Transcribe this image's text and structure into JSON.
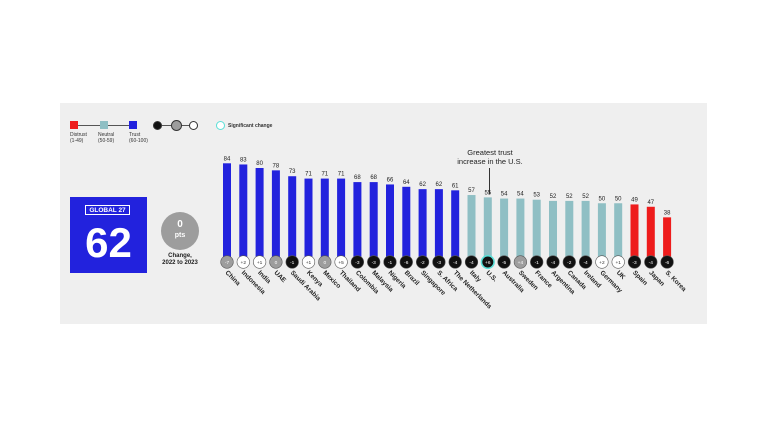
{
  "legend": {
    "categories": [
      {
        "name": "Distrust",
        "range": "(1-49)",
        "color": "#ee1c1c"
      },
      {
        "name": "Neutral",
        "range": "(50-59)",
        "color": "#8fbfc4"
      },
      {
        "name": "Trust",
        "range": "(60-100)",
        "color": "#2222dd"
      }
    ],
    "significant_label": "Significant change"
  },
  "global": {
    "label": "GLOBAL 27",
    "value": "62"
  },
  "change": {
    "value": "0",
    "unit": "pts",
    "caption_line1": "Change,",
    "caption_line2": "2022 to 2023"
  },
  "annotation": {
    "line1": "Greatest trust",
    "line2": "increase in the U.S."
  },
  "chart_data": {
    "type": "bar",
    "categories": [
      "China",
      "Indonesia",
      "India",
      "UAE",
      "Saudi Arabia",
      "Kenya",
      "Mexico",
      "Thailand",
      "Colombia",
      "Malaysia",
      "Nigeria",
      "Brazil",
      "Singapore",
      "S. Africa",
      "The Netherlands",
      "Italy",
      "U.S.",
      "Australia",
      "Sweden",
      "France",
      "Argentina",
      "Canada",
      "Ireland",
      "Germany",
      "UK",
      "Spain",
      "Japan",
      "S. Korea"
    ],
    "values": [
      84,
      83,
      80,
      78,
      73,
      71,
      71,
      71,
      68,
      68,
      66,
      64,
      62,
      62,
      61,
      57,
      55,
      54,
      54,
      53,
      52,
      52,
      52,
      50,
      50,
      49,
      47,
      38
    ],
    "changes": [
      "-7",
      "+2",
      "+1",
      "0",
      "-1",
      "+1",
      "0",
      "+5",
      "-3",
      "-3",
      "-1",
      "-6",
      "-2",
      "-3",
      "-4",
      "-4",
      "+6",
      "-5",
      "+4",
      "-1",
      "-4",
      "-2",
      "-4",
      "+2",
      "+1",
      "-3",
      "-4",
      "-6"
    ],
    "change_colors": [
      "#9d9d9d",
      "#ffffff",
      "#ffffff",
      "#9d9d9d",
      "#111111",
      "#ffffff",
      "#9d9d9d",
      "#ffffff",
      "#111111",
      "#111111",
      "#111111",
      "#111111",
      "#111111",
      "#111111",
      "#111111",
      "#111111",
      "#111111",
      "#111111",
      "#9d9d9d",
      "#111111",
      "#111111",
      "#111111",
      "#111111",
      "#ffffff",
      "#ffffff",
      "#111111",
      "#111111",
      "#111111"
    ],
    "colors": {
      "trust": "#2222dd",
      "neutral": "#8fbfc4",
      "distrust": "#ee1c1c",
      "significant": "#5ce0d8"
    },
    "ylim": [
      0,
      100
    ]
  }
}
